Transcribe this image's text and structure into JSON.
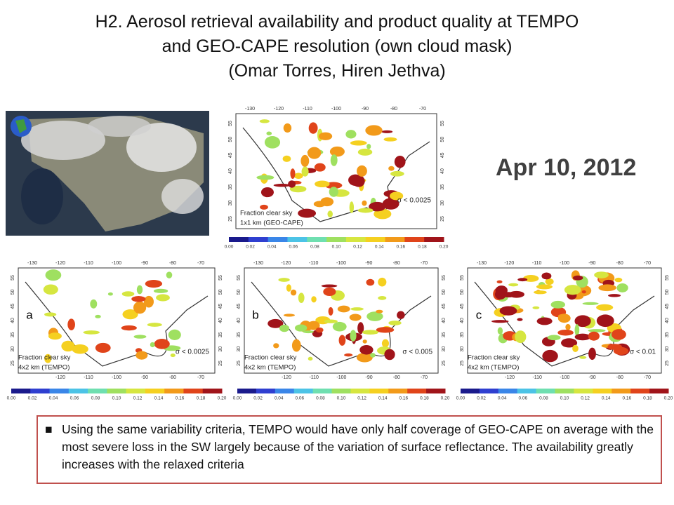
{
  "title": [
    "H2. Aerosol retrieval availability and product quality at TEMPO",
    "and GEO-CAPE resolution (own cloud mask)",
    "(Omar Torres, Hiren Jethva)"
  ],
  "date": "Apr 10, 2012",
  "map_axes": {
    "lon_top": [
      "-130",
      "-120",
      "-110",
      "-100",
      "-90",
      "-80",
      "-70"
    ],
    "lon_bottom": [
      "-120",
      "-110",
      "-100",
      "-90",
      "-80",
      "-70"
    ],
    "lat": [
      "55",
      "50",
      "45",
      "40",
      "35",
      "30",
      "25"
    ],
    "colorbar": [
      "0.00",
      "0.02",
      "0.04",
      "0.06",
      "0.08",
      "0.10",
      "0.12",
      "0.14",
      "0.16",
      "0.18",
      "0.20"
    ]
  },
  "panels": [
    {
      "caption": [
        "Fraction clear sky",
        "1x1 km (GEO-CAPE)"
      ],
      "sigma": "σ < 0.0025"
    },
    {
      "letter": "a",
      "caption": [
        "Fraction clear sky",
        "4x2 km (TEMPO)"
      ],
      "sigma": "σ < 0.0025"
    },
    {
      "letter": "b",
      "caption": [
        "Fraction clear sky",
        "4x2 km (TEMPO)"
      ],
      "sigma": "σ < 0.005"
    },
    {
      "letter": "c",
      "caption": [
        "Fraction clear sky",
        "4x2 km (TEMPO)"
      ],
      "sigma": "σ < 0.01"
    }
  ],
  "bullet": "Using the same variability criteria, TEMPO would have only half coverage of GEO-CAPE on average with the most severe loss in the SW largely because of the variation of surface reflectance. The availability greatly increases with the relaxed criteria"
}
